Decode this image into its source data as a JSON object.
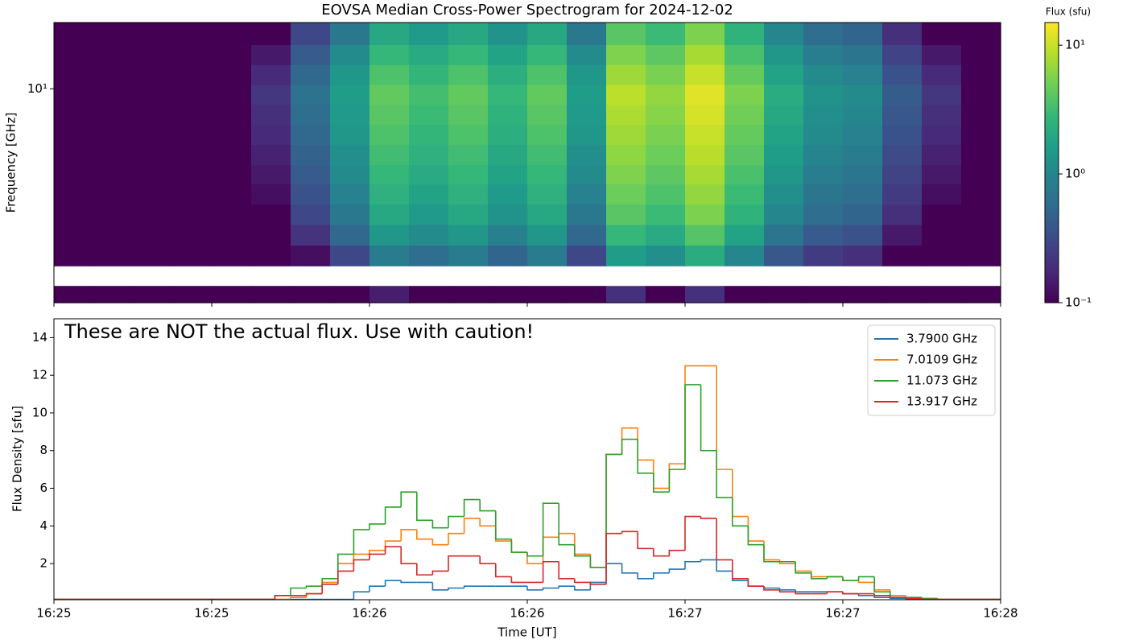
{
  "chart_data": [
    {
      "type": "heatmap",
      "title": "EOVSA Median Cross-Power Spectrogram for 2024-12-02",
      "y_label": "Frequency [GHz]",
      "ylim": [
        1.5,
        18
      ],
      "log_y": true,
      "yticks": [
        {
          "value": 10,
          "label": "10¹"
        }
      ],
      "y_edges": [
        1.5,
        1.74,
        2.08,
        2.5,
        3.0,
        3.6,
        4.3,
        5.1,
        6.1,
        7.3,
        8.7,
        10.4,
        12.4,
        14.8,
        18
      ],
      "colormap": "viridis",
      "colorbar": {
        "label": "Flux (sfu)",
        "lim": [
          0.1,
          15
        ],
        "log": true,
        "ticks": [
          {
            "value": 0.1,
            "label": "10⁻¹"
          },
          {
            "value": 1,
            "label": "10⁰"
          },
          {
            "value": 10,
            "label": "10¹"
          }
        ]
      },
      "values": [
        [
          0.1,
          0.1,
          0.1,
          0.1,
          0.1,
          0.1,
          0.1,
          0.1,
          0.15,
          0.1,
          0.1,
          0.1,
          0.1,
          0.1,
          0.2,
          0.1,
          0.2,
          0.1,
          0.1,
          0.1,
          0.1,
          0.1,
          0.1,
          0.1
        ],
        [
          null,
          null,
          null,
          null,
          null,
          null,
          null,
          null,
          null,
          null,
          null,
          null,
          null,
          null,
          null,
          null,
          null,
          null,
          null,
          null,
          null,
          null,
          null,
          null
        ],
        [
          0.1,
          0.1,
          0.1,
          0.1,
          0.1,
          0.1,
          0.12,
          0.3,
          0.8,
          0.6,
          0.8,
          0.5,
          0.8,
          0.3,
          1.6,
          1.2,
          2.2,
          1.0,
          0.4,
          0.24,
          0.2,
          0.1,
          0.1,
          0.1
        ],
        [
          0.1,
          0.1,
          0.1,
          0.1,
          0.1,
          0.1,
          0.21,
          0.53,
          1.4,
          1.1,
          1.4,
          0.88,
          1.4,
          0.53,
          2.8,
          2.1,
          3.9,
          1.8,
          0.7,
          0.42,
          0.35,
          0.14,
          0.1,
          0.1
        ],
        [
          0.1,
          0.1,
          0.1,
          0.1,
          0.1,
          0.1,
          0.3,
          0.75,
          2,
          1.5,
          2,
          1.3,
          2,
          0.75,
          4,
          3,
          5.5,
          2.5,
          1,
          0.6,
          0.5,
          0.2,
          0.1,
          0.1
        ],
        [
          0.1,
          0.1,
          0.1,
          0.1,
          0.1,
          0.12,
          0.36,
          0.9,
          2.4,
          1.8,
          2.4,
          1.5,
          2.4,
          0.9,
          4.8,
          3.6,
          6.6,
          3,
          1.2,
          0.72,
          0.6,
          0.24,
          0.12,
          0.1
        ],
        [
          0.1,
          0.1,
          0.1,
          0.1,
          0.1,
          0.14,
          0.42,
          1.1,
          2.8,
          2.1,
          2.8,
          1.8,
          2.8,
          1.1,
          5.6,
          4.2,
          7.7,
          3.5,
          1.4,
          0.84,
          0.7,
          0.28,
          0.14,
          0.1
        ],
        [
          0.1,
          0.1,
          0.1,
          0.1,
          0.1,
          0.16,
          0.48,
          1.2,
          3.2,
          2.4,
          3.2,
          2,
          3.2,
          1.2,
          6.4,
          4.8,
          8.8,
          4,
          1.6,
          0.96,
          0.8,
          0.32,
          0.16,
          0.1
        ],
        [
          0.1,
          0.1,
          0.1,
          0.1,
          0.1,
          0.18,
          0.54,
          1.4,
          3.6,
          2.7,
          3.6,
          2.3,
          3.6,
          1.4,
          7.2,
          5.4,
          9.9,
          4.5,
          1.8,
          1.1,
          0.9,
          0.36,
          0.18,
          0.1
        ],
        [
          0.1,
          0.1,
          0.1,
          0.1,
          0.1,
          0.2,
          0.6,
          1.5,
          4,
          3,
          4,
          2.5,
          4,
          1.5,
          8,
          6,
          11,
          5,
          2,
          1.2,
          1,
          0.4,
          0.2,
          0.1
        ],
        [
          0.1,
          0.1,
          0.1,
          0.1,
          0.1,
          0.22,
          0.66,
          1.6,
          4.4,
          3.3,
          4.4,
          2.8,
          4.4,
          1.6,
          9,
          6.6,
          12,
          5.5,
          2.2,
          1.3,
          1.1,
          0.44,
          0.22,
          0.1
        ],
        [
          0.1,
          0.1,
          0.1,
          0.1,
          0.1,
          0.18,
          0.54,
          1.4,
          3.6,
          2.7,
          3.6,
          2.3,
          3.6,
          1.4,
          7.2,
          5.4,
          9.9,
          4.5,
          1.8,
          1.1,
          0.9,
          0.36,
          0.18,
          0.1
        ],
        [
          0.1,
          0.1,
          0.1,
          0.1,
          0.1,
          0.14,
          0.42,
          1.1,
          2.8,
          2.1,
          2.8,
          1.8,
          2.8,
          1.1,
          5.6,
          4.2,
          7.7,
          3.5,
          1.4,
          0.84,
          0.7,
          0.28,
          0.14,
          0.1
        ],
        [
          0.1,
          0.1,
          0.1,
          0.1,
          0.1,
          0.1,
          0.3,
          0.75,
          2,
          1.5,
          2,
          1.3,
          2,
          0.75,
          4,
          3,
          5.5,
          2.5,
          1,
          0.6,
          0.5,
          0.2,
          0.1,
          0.1
        ]
      ]
    },
    {
      "type": "line",
      "step": true,
      "x_label": "Time [UT]",
      "y_label": "Flux Density [sfu]",
      "annotation": "These are NOT the actual flux. Use with caution!",
      "xticks": [
        "16:25",
        "16:25",
        "16:26",
        "16:26",
        "16:27",
        "16:27",
        "16:28"
      ],
      "ylim": [
        0.08,
        15
      ],
      "yticks": [
        2,
        4,
        6,
        8,
        10,
        12,
        14
      ],
      "legend": "upper right",
      "series": [
        {
          "name": "3.7900 GHz",
          "color": "#1f77b4",
          "values": [
            0.1,
            0.1,
            0.1,
            0.1,
            0.1,
            0.1,
            0.1,
            0.1,
            0.1,
            0.1,
            0.1,
            0.1,
            0.1,
            0.1,
            0.1,
            0.1,
            0.1,
            0.1,
            0.1,
            0.5,
            0.8,
            1.1,
            1.0,
            1.0,
            0.6,
            0.7,
            0.8,
            0.8,
            0.8,
            0.8,
            0.6,
            0.7,
            0.8,
            0.6,
            1.0,
            2.0,
            1.5,
            1.2,
            1.5,
            1.7,
            2.1,
            2.2,
            1.6,
            1.1,
            0.8,
            0.7,
            0.6,
            0.5,
            0.5,
            0.5,
            0.4,
            0.3,
            0.2,
            0.15,
            0.1,
            0.1,
            0.1,
            0.1,
            0.1,
            0.1
          ]
        },
        {
          "name": "7.0109 GHz",
          "color": "#ff7f0e",
          "values": [
            0.1,
            0.1,
            0.1,
            0.1,
            0.1,
            0.1,
            0.1,
            0.1,
            0.1,
            0.1,
            0.1,
            0.1,
            0.1,
            0.1,
            0.1,
            0.2,
            0.4,
            1.0,
            2.0,
            2.5,
            2.7,
            3.2,
            3.8,
            3.3,
            3.0,
            3.6,
            4.4,
            4.0,
            3.2,
            2.6,
            2.0,
            3.4,
            3.6,
            2.5,
            1.8,
            7.8,
            9.2,
            7.5,
            6.0,
            7.3,
            12.5,
            12.5,
            7.0,
            4.5,
            3.2,
            2.2,
            2.0,
            1.6,
            1.3,
            1.3,
            1.1,
            1.0,
            0.6,
            0.3,
            0.2,
            0.15,
            0.1,
            0.1,
            0.1,
            0.1
          ]
        },
        {
          "name": "11.073 GHz",
          "color": "#2ca02c",
          "values": [
            0.1,
            0.1,
            0.1,
            0.1,
            0.1,
            0.1,
            0.1,
            0.1,
            0.1,
            0.1,
            0.1,
            0.1,
            0.1,
            0.1,
            0.3,
            0.7,
            0.8,
            1.2,
            2.5,
            3.8,
            4.1,
            5.0,
            5.8,
            4.3,
            3.9,
            4.5,
            5.4,
            4.8,
            3.3,
            2.6,
            2.4,
            5.2,
            3.0,
            2.4,
            1.8,
            7.8,
            8.6,
            6.8,
            5.8,
            7.0,
            11.5,
            8.0,
            5.5,
            4.0,
            3.0,
            2.1,
            2.1,
            1.5,
            1.2,
            1.3,
            1.1,
            1.3,
            0.5,
            0.2,
            0.2,
            0.15,
            0.1,
            0.1,
            0.1,
            0.1
          ]
        },
        {
          "name": "13.917 GHz",
          "color": "#d62728",
          "values": [
            0.1,
            0.1,
            0.1,
            0.1,
            0.1,
            0.1,
            0.1,
            0.1,
            0.1,
            0.1,
            0.1,
            0.1,
            0.1,
            0.1,
            0.3,
            0.3,
            0.4,
            0.9,
            1.6,
            2.2,
            2.5,
            2.9,
            2.0,
            1.4,
            1.6,
            2.4,
            2.4,
            2.0,
            1.3,
            1.0,
            1.0,
            2.1,
            1.2,
            1.0,
            0.9,
            3.6,
            3.7,
            2.8,
            2.4,
            2.7,
            4.5,
            4.4,
            2.2,
            1.2,
            0.8,
            0.6,
            0.5,
            0.4,
            0.4,
            0.5,
            0.4,
            0.4,
            0.3,
            0.2,
            0.15,
            0.1,
            0.1,
            0.1,
            0.1,
            0.1
          ]
        }
      ]
    }
  ]
}
